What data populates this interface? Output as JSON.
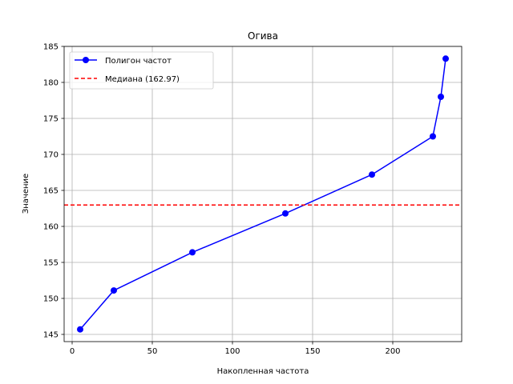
{
  "chart_data": {
    "type": "line",
    "title": "Огива",
    "xlabel": "Накопленная частота",
    "ylabel": "Значение",
    "xlim": [
      -5,
      243
    ],
    "ylim": [
      144,
      185
    ],
    "xticks": [
      0,
      50,
      100,
      150,
      200
    ],
    "yticks": [
      145,
      150,
      155,
      160,
      165,
      170,
      175,
      180,
      185
    ],
    "grid": true,
    "legend_position": "top-left",
    "series": [
      {
        "name": "Полигон частот",
        "color": "#0000ff",
        "marker": "circle",
        "x": [
          5,
          26,
          75,
          133,
          187,
          225,
          230,
          233
        ],
        "y": [
          145.7,
          151.1,
          156.4,
          161.8,
          167.2,
          172.5,
          178.0,
          183.3
        ]
      }
    ],
    "hlines": [
      {
        "name": "Медиана (162.97)",
        "y": 162.97,
        "color": "#ff0000",
        "style": "dashed"
      }
    ]
  }
}
